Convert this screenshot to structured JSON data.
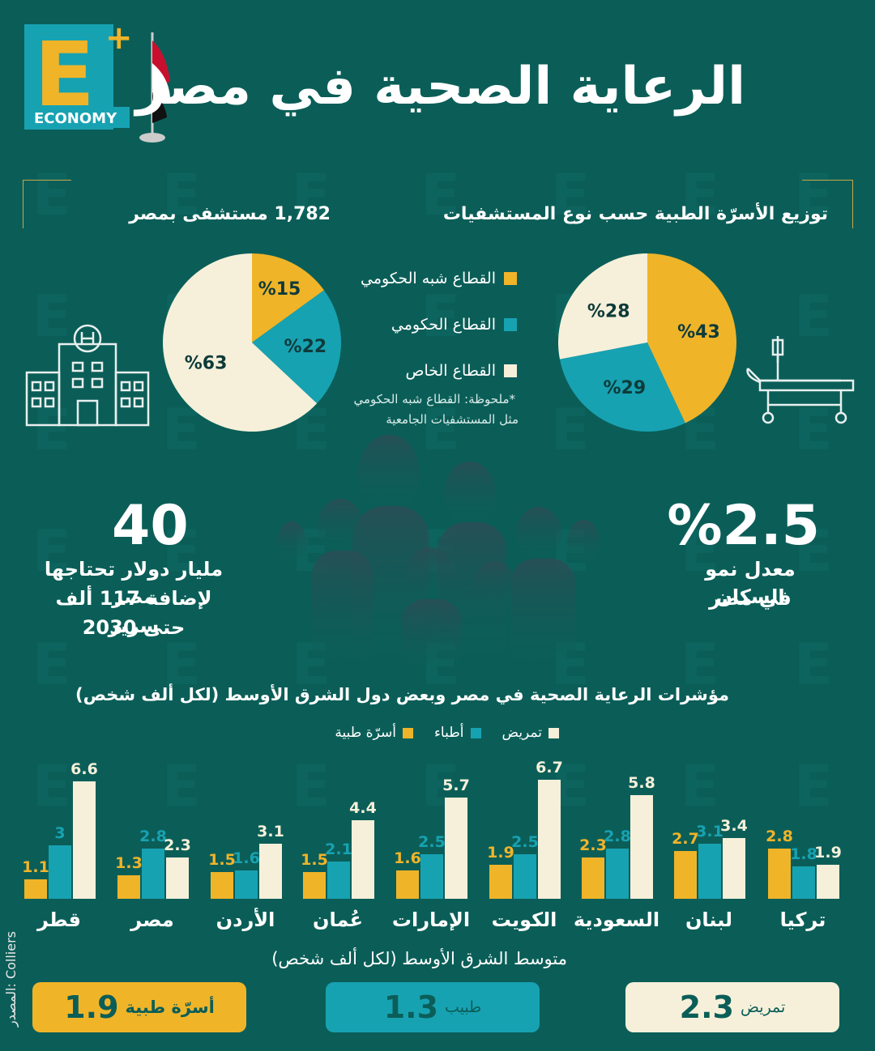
{
  "header": {
    "logo_letter": "E",
    "logo_text": "ECONOMY",
    "title": "الرعاية الصحية في مصر"
  },
  "beds_section": {
    "title": "توزيع الأسرّة  الطبية حسب نوع المستشفيات",
    "slices": [
      {
        "label": "%43",
        "value": 43
      },
      {
        "label": "%29",
        "value": 29
      },
      {
        "label": "%28",
        "value": 28
      }
    ]
  },
  "hospitals_section": {
    "title": "1,782 مستشفى بمصر",
    "slices": [
      {
        "label": "%15",
        "value": 15
      },
      {
        "label": "%22",
        "value": 22
      },
      {
        "label": "%63",
        "value": 63
      }
    ]
  },
  "legend": {
    "items": [
      {
        "label": "القطاع شبه الحكومي",
        "color": "#f0b429"
      },
      {
        "label": "القطاع الحكومي",
        "color": "#17a2b2"
      },
      {
        "label": "القطاع الخاص",
        "color": "#f6f0da"
      }
    ],
    "note_line1": "*ملحوظة: القطاع شبه الحكومي",
    "note_line2": "مثل المستشفيات الجامعية"
  },
  "stats": {
    "growth_value": "%2.5",
    "growth_line1": "معدل نمو السكان",
    "growth_line2": "في مصر",
    "invest_value": "40",
    "invest_line1": "مليار دولار تحتاجها مصر",
    "invest_line2": "لإضافة 117 ألف سرير",
    "invest_line3": "حتى 2030"
  },
  "chart_data": {
    "type": "bar",
    "title": "مؤشرات الرعاية الصحية في مصر وبعض دول الشرق الأوسط (لكل ألف شخص)",
    "categories": [
      "قطر",
      "مصر",
      "الأردن",
      "عُمان",
      "الإمارات",
      "الكويت",
      "السعودية",
      "لبنان",
      "تركيا"
    ],
    "series": [
      {
        "name": "أسرّة طبية",
        "color": "#f0b429",
        "values": [
          1.1,
          1.3,
          1.5,
          1.5,
          1.6,
          1.9,
          2.3,
          2.7,
          2.8
        ]
      },
      {
        "name": "أطباء",
        "color": "#17a2b2",
        "values": [
          3,
          2.8,
          1.6,
          2.1,
          2.5,
          2.5,
          2.8,
          3.1,
          1.8
        ]
      },
      {
        "name": "تمريض",
        "color": "#f6f0da",
        "values": [
          6.6,
          2.3,
          3.1,
          4.4,
          5.7,
          6.7,
          5.8,
          3.4,
          1.9
        ]
      }
    ],
    "ylim": [
      0,
      7
    ]
  },
  "averages": {
    "title": "متوسط الشرق الأوسط (لكل ألف شخص)",
    "beds_value": "1.9",
    "beds_label": "أسرّة طبية",
    "doctors_value": "1.3",
    "doctors_label": "طبيب",
    "nursing_value": "2.3",
    "nursing_label": "تمريض"
  },
  "source_label": "المصدر: Colliers"
}
